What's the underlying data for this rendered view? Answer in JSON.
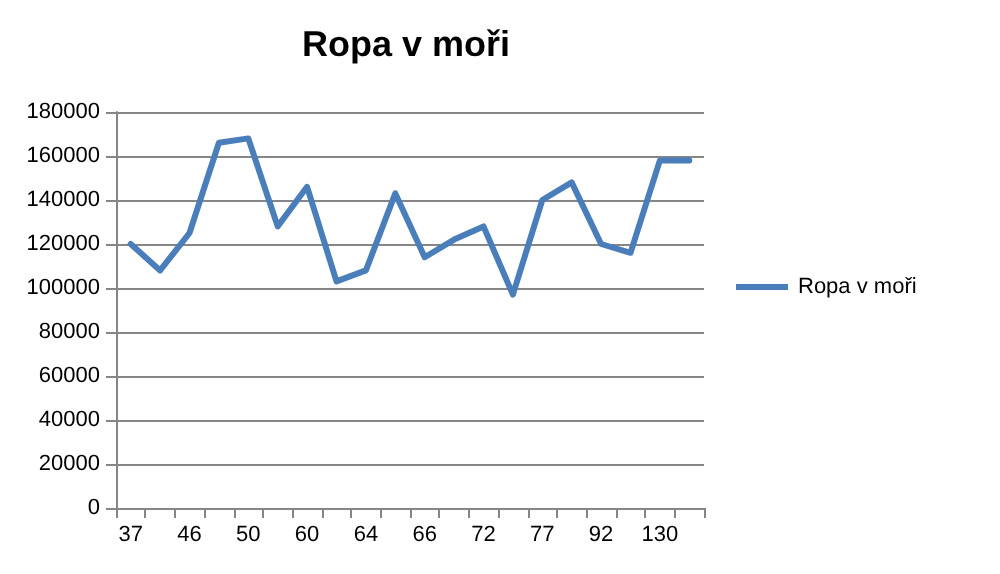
{
  "chart_data": {
    "type": "line",
    "title": "Ropa v moři",
    "categories": [
      "37",
      null,
      "46",
      null,
      "50",
      null,
      "60",
      null,
      "64",
      null,
      "66",
      null,
      "72",
      null,
      "77",
      null,
      "92",
      null,
      "130",
      null
    ],
    "series": [
      {
        "name": "Ropa v moři",
        "color": "#4a7ebb",
        "values": [
          120000,
          108000,
          125000,
          166000,
          168000,
          128000,
          146000,
          103000,
          108000,
          143000,
          114000,
          122000,
          128000,
          97000,
          140000,
          148000,
          120000,
          116000,
          158000,
          158000
        ]
      }
    ],
    "ylim": [
      0,
      180000
    ],
    "yticks": [
      0,
      20000,
      40000,
      60000,
      80000,
      100000,
      120000,
      140000,
      160000,
      180000
    ],
    "grid": "y",
    "legend": "right",
    "marker": "none",
    "line_style": "solid"
  }
}
